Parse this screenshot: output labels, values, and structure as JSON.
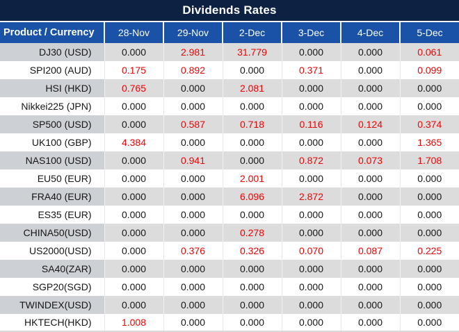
{
  "title": "Dividends Rates",
  "colors": {
    "title_bg": "#0d2142",
    "header_bg": "#1a52a8",
    "alt_product_bg": "#cdd0d4",
    "alt_value_bg": "#dcdcdc",
    "zero_text": "#161616",
    "nonzero_text": "#f40000"
  },
  "table": {
    "columns": [
      "Product / Currency",
      "28-Nov",
      "29-Nov",
      "2-Dec",
      "3-Dec",
      "4-Dec",
      "5-Dec"
    ],
    "rows": [
      {
        "product": "DJ30 (USD)",
        "values": [
          "0.000",
          "2.981",
          "31.779",
          "0.000",
          "0.000",
          "0.061"
        ]
      },
      {
        "product": "SPI200 (AUD)",
        "values": [
          "0.175",
          "0.892",
          "0.000",
          "0.371",
          "0.000",
          "0.099"
        ]
      },
      {
        "product": "HSI (HKD)",
        "values": [
          "0.765",
          "0.000",
          "2.081",
          "0.000",
          "0.000",
          "0.000"
        ]
      },
      {
        "product": "Nikkei225 (JPN)",
        "values": [
          "0.000",
          "0.000",
          "0.000",
          "0.000",
          "0.000",
          "0.000"
        ]
      },
      {
        "product": "SP500 (USD)",
        "values": [
          "0.000",
          "0.587",
          "0.718",
          "0.116",
          "0.124",
          "0.374"
        ]
      },
      {
        "product": "UK100 (GBP)",
        "values": [
          "4.384",
          "0.000",
          "0.000",
          "0.000",
          "0.000",
          "1.365"
        ]
      },
      {
        "product": "NAS100 (USD)",
        "values": [
          "0.000",
          "0.941",
          "0.000",
          "0.872",
          "0.073",
          "1.708"
        ]
      },
      {
        "product": "EU50 (EUR)",
        "values": [
          "0.000",
          "0.000",
          "2.001",
          "0.000",
          "0.000",
          "0.000"
        ]
      },
      {
        "product": "FRA40 (EUR)",
        "values": [
          "0.000",
          "0.000",
          "6.096",
          "2.872",
          "0.000",
          "0.000"
        ]
      },
      {
        "product": "ES35 (EUR)",
        "values": [
          "0.000",
          "0.000",
          "0.000",
          "0.000",
          "0.000",
          "0.000"
        ]
      },
      {
        "product": "CHINA50(USD)",
        "values": [
          "0.000",
          "0.000",
          "0.278",
          "0.000",
          "0.000",
          "0.000"
        ]
      },
      {
        "product": "US2000(USD)",
        "values": [
          "0.000",
          "0.376",
          "0.326",
          "0.070",
          "0.087",
          "0.225"
        ]
      },
      {
        "product": "SA40(ZAR)",
        "values": [
          "0.000",
          "0.000",
          "0.000",
          "0.000",
          "0.000",
          "0.000"
        ]
      },
      {
        "product": "SGP20(SGD)",
        "values": [
          "0.000",
          "0.000",
          "0.000",
          "0.000",
          "0.000",
          "0.000"
        ]
      },
      {
        "product": "TWINDEX(USD)",
        "values": [
          "0.000",
          "0.000",
          "0.000",
          "0.000",
          "0.000",
          "0.000"
        ]
      },
      {
        "product": "HKTECH(HKD)",
        "values": [
          "1.008",
          "0.000",
          "0.000",
          "0.000",
          "0.000",
          "0.000"
        ]
      }
    ]
  }
}
